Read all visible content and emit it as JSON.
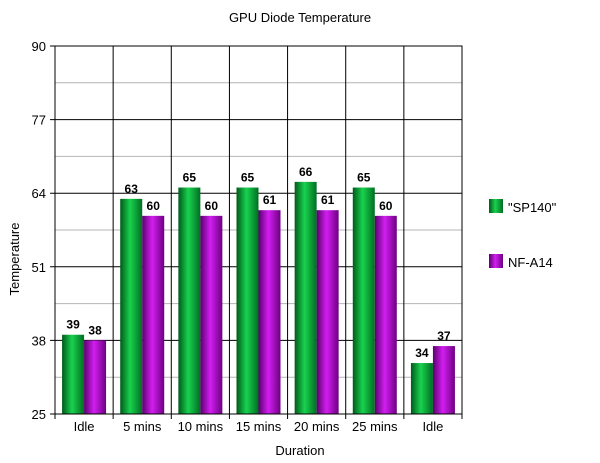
{
  "chart_data": {
    "type": "bar",
    "title": "GPU Diode Temperature",
    "xlabel": "Duration",
    "ylabel": "Temperature",
    "categories": [
      "Idle",
      "5 mins",
      "10 mins",
      "15 mins",
      "20 mins",
      "25 mins",
      "Idle"
    ],
    "ylim": [
      25,
      90
    ],
    "yticks": [
      25,
      38,
      51,
      64,
      77,
      90
    ],
    "grid": true,
    "legend_position": "right",
    "series": [
      {
        "name": "\"SP140\"",
        "values": [
          39,
          63,
          65,
          65,
          66,
          65,
          34
        ],
        "color": "#00a030"
      },
      {
        "name": "NF-A14",
        "values": [
          38,
          60,
          60,
          61,
          61,
          60,
          37
        ],
        "color": "#a000c8"
      }
    ]
  }
}
